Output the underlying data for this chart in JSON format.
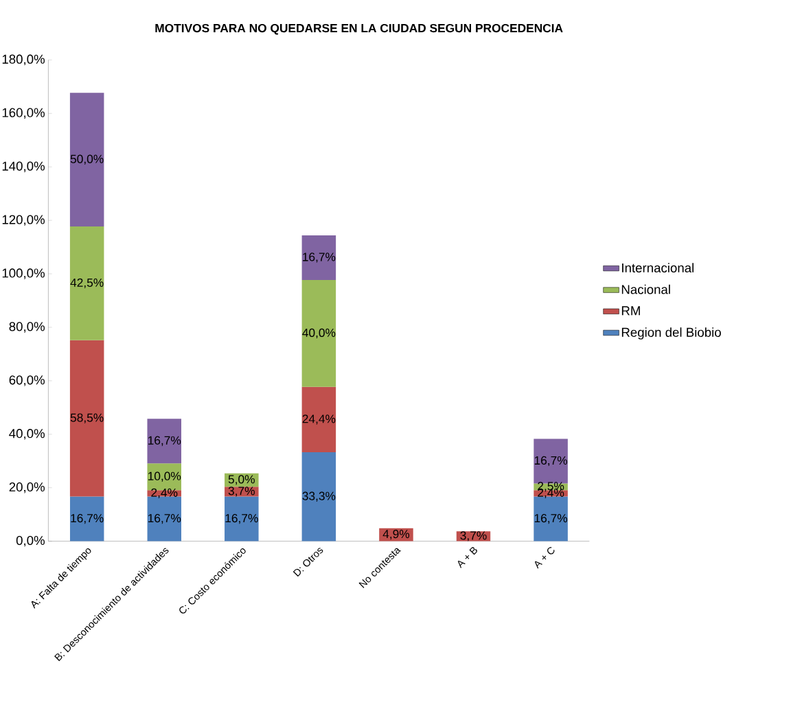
{
  "chart_data": {
    "type": "bar",
    "stacked": true,
    "title": "MOTIVOS PARA NO QUEDARSE EN LA CIUDAD SEGUN PROCEDENCIA",
    "categories": [
      "A: Falta de tiempo",
      "B: Desconocimiento de actividades",
      "C: Costo económico",
      "D: Otros",
      "No contesta",
      "A + B",
      "A + C"
    ],
    "series": [
      {
        "name": "Region del Biobio",
        "color": "#4f81bd",
        "values": [
          16.7,
          16.7,
          16.7,
          33.3,
          null,
          null,
          16.7
        ],
        "value_labels": [
          "16,7%",
          "16,7%",
          "16,7%",
          "33,3%",
          null,
          null,
          "16,7%"
        ]
      },
      {
        "name": "RM",
        "color": "#c0504d",
        "values": [
          58.5,
          2.4,
          3.7,
          24.4,
          4.9,
          3.7,
          2.4
        ],
        "value_labels": [
          "58,5%",
          "2,4%",
          "3,7%",
          "24,4%",
          "4,9%",
          "3,7%",
          "2,4%"
        ]
      },
      {
        "name": "Nacional",
        "color": "#9bbb59",
        "values": [
          42.5,
          10.0,
          5.0,
          40.0,
          null,
          null,
          2.5
        ],
        "value_labels": [
          "42,5%",
          "10,0%",
          "5,0%",
          "40,0%",
          null,
          null,
          "2,5%"
        ]
      },
      {
        "name": "Internacional",
        "color": "#8064a2",
        "values": [
          50.0,
          16.7,
          null,
          16.7,
          null,
          null,
          16.7
        ],
        "value_labels": [
          "50,0%",
          "16,7%",
          null,
          "16,7%",
          null,
          null,
          "16,7%"
        ]
      }
    ],
    "ylim": [
      0,
      180
    ],
    "yticks": [
      {
        "value": 0,
        "label": "0,0%"
      },
      {
        "value": 20,
        "label": "20,0%"
      },
      {
        "value": 40,
        "label": "40,0%"
      },
      {
        "value": 60,
        "label": "60,0%"
      },
      {
        "value": 80,
        "label": "80,0%"
      },
      {
        "value": 100,
        "label": "100,0%"
      },
      {
        "value": 120,
        "label": "120,0%"
      },
      {
        "value": 140,
        "label": "140,0%"
      },
      {
        "value": 160,
        "label": "160,0%"
      },
      {
        "value": 180,
        "label": "180,0%"
      }
    ],
    "grid": false,
    "legend": "right"
  }
}
